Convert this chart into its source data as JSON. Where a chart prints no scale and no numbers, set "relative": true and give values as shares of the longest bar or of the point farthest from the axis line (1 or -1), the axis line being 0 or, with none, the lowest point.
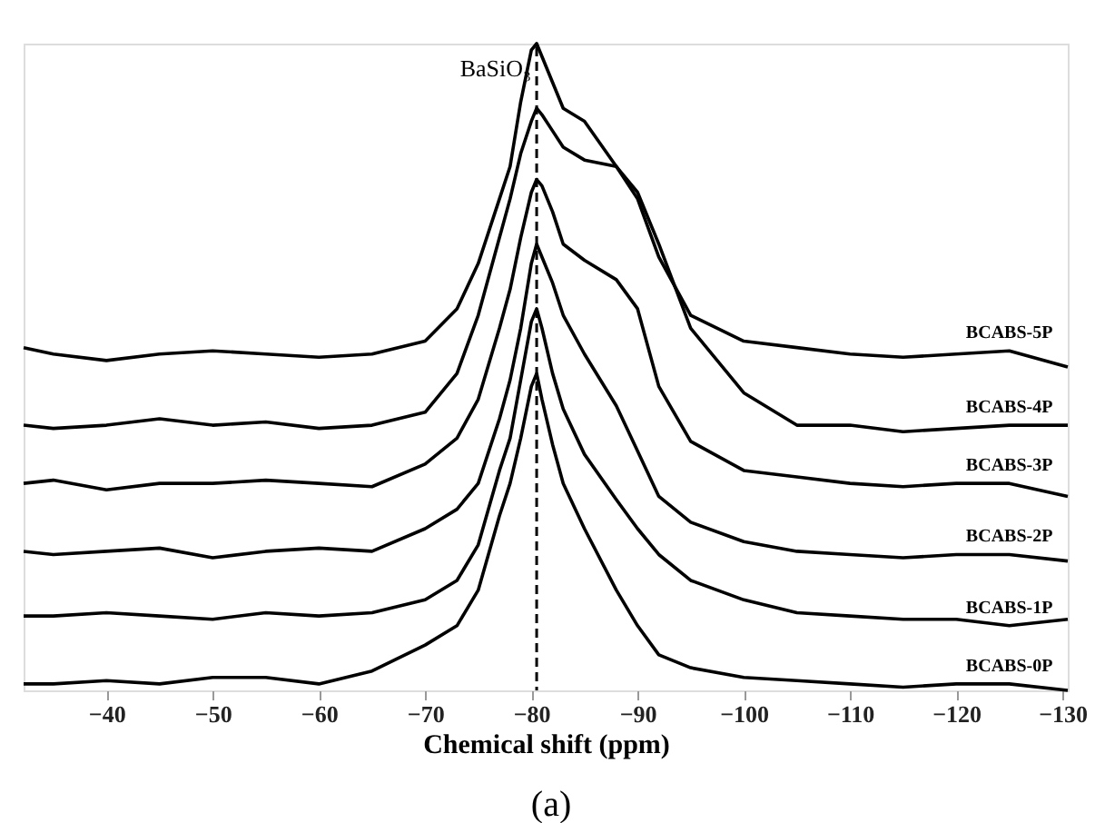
{
  "chart_data": {
    "type": "line",
    "relative": true,
    "xlabel": "Chemical shift (ppm)",
    "annotations": [
      "(a)"
    ],
    "xlim": [
      -32.2,
      -130.5
    ],
    "xticks": [
      -40,
      -50,
      -60,
      -70,
      -80,
      -90,
      -100,
      -110,
      -120,
      -130
    ],
    "tick_labels": "x",
    "grid": false,
    "marker": "none",
    "line_style": "solid",
    "x": [
      -32.2,
      -35,
      -40,
      -45,
      -50,
      -55,
      -60,
      -65,
      -70,
      -73,
      -75,
      -77,
      -78,
      -79,
      -80,
      -80.5,
      -81,
      -82,
      -83,
      -85,
      -88,
      -90,
      -92,
      -95,
      -100,
      -105,
      -110,
      -115,
      -120,
      -125,
      -130.5
    ],
    "ref_lines": [
      {
        "axis": "x",
        "value": -80.5,
        "label": "BaSiO₃",
        "color": "#000000",
        "line_style": "dashed"
      }
    ],
    "series": [
      {
        "name": "BCABS-5P",
        "color": "#000000",
        "values": [
          0.53,
          0.52,
          0.51,
          0.52,
          0.525,
          0.52,
          0.515,
          0.52,
          0.54,
          0.59,
          0.66,
          0.76,
          0.81,
          0.91,
          0.99,
          1.0,
          0.98,
          0.94,
          0.9,
          0.88,
          0.81,
          0.76,
          0.67,
          0.58,
          0.54,
          0.53,
          0.52,
          0.515,
          0.52,
          0.525,
          0.5
        ]
      },
      {
        "name": "BCABS-4P",
        "color": "#000000",
        "values": [
          0.41,
          0.405,
          0.41,
          0.42,
          0.41,
          0.415,
          0.405,
          0.41,
          0.43,
          0.49,
          0.58,
          0.7,
          0.76,
          0.83,
          0.88,
          0.9,
          0.89,
          0.865,
          0.84,
          0.82,
          0.81,
          0.77,
          0.69,
          0.56,
          0.46,
          0.41,
          0.41,
          0.4,
          0.405,
          0.41,
          0.41
        ]
      },
      {
        "name": "BCABS-3P",
        "color": "#000000",
        "values": [
          0.32,
          0.325,
          0.31,
          0.32,
          0.32,
          0.325,
          0.32,
          0.315,
          0.35,
          0.39,
          0.45,
          0.56,
          0.62,
          0.7,
          0.77,
          0.79,
          0.78,
          0.74,
          0.69,
          0.665,
          0.635,
          0.59,
          0.47,
          0.385,
          0.34,
          0.33,
          0.32,
          0.315,
          0.32,
          0.32,
          0.3
        ]
      },
      {
        "name": "BCABS-2P",
        "color": "#000000",
        "values": [
          0.215,
          0.21,
          0.215,
          0.22,
          0.205,
          0.215,
          0.22,
          0.215,
          0.25,
          0.28,
          0.32,
          0.42,
          0.48,
          0.56,
          0.66,
          0.69,
          0.67,
          0.63,
          0.58,
          0.52,
          0.44,
          0.37,
          0.3,
          0.26,
          0.23,
          0.215,
          0.21,
          0.205,
          0.21,
          0.21,
          0.2
        ]
      },
      {
        "name": "BCABS-1P",
        "color": "#000000",
        "values": [
          0.115,
          0.115,
          0.12,
          0.115,
          0.11,
          0.12,
          0.115,
          0.12,
          0.14,
          0.17,
          0.225,
          0.34,
          0.39,
          0.48,
          0.57,
          0.59,
          0.56,
          0.49,
          0.435,
          0.365,
          0.295,
          0.25,
          0.21,
          0.17,
          0.14,
          0.12,
          0.115,
          0.11,
          0.11,
          0.1,
          0.11
        ]
      },
      {
        "name": "BCABS-0P",
        "color": "#000000",
        "values": [
          0.01,
          0.01,
          0.015,
          0.01,
          0.02,
          0.02,
          0.01,
          0.03,
          0.07,
          0.1,
          0.155,
          0.27,
          0.32,
          0.39,
          0.47,
          0.49,
          0.45,
          0.38,
          0.32,
          0.25,
          0.155,
          0.1,
          0.055,
          0.035,
          0.02,
          0.015,
          0.01,
          0.005,
          0.01,
          0.01,
          0.0
        ]
      }
    ]
  }
}
